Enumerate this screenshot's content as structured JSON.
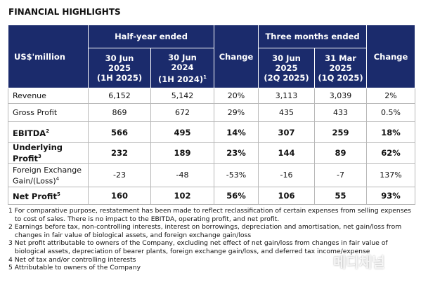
{
  "title": "FINANCIAL HIGHLIGHTS",
  "table": {
    "corner": "US$'million",
    "groups": [
      "Half-year ended",
      "Change",
      "Three months ended",
      "Change"
    ],
    "columns": [
      {
        "day": "30 Jun",
        "year": "2025",
        "period": "(1H 2025)"
      },
      {
        "day": "30 Jun",
        "year": "2024",
        "period": "(1H 2024)",
        "note": "1"
      },
      {
        "day": "30 Jun",
        "year": "2025",
        "period": "(2Q 2025)"
      },
      {
        "day": "31 Mar",
        "year": "2025",
        "period": "(1Q 2025)"
      }
    ],
    "rows": [
      {
        "label": "Revenue",
        "bold": false,
        "cells": [
          "6,152",
          "5,142",
          "20%",
          "3,113",
          "3,039",
          "2%"
        ]
      },
      {
        "label": "Gross Profit",
        "bold": false,
        "cells": [
          "869",
          "672",
          "29%",
          "435",
          "433",
          "0.5%"
        ]
      },
      {
        "label": "EBITDA",
        "note": "2",
        "bold": true,
        "cells": [
          "566",
          "495",
          "14%",
          "307",
          "259",
          "18%"
        ]
      },
      {
        "label": "Underlying Profit",
        "note": "3",
        "bold": true,
        "cells": [
          "232",
          "189",
          "23%",
          "144",
          "89",
          "62%"
        ]
      },
      {
        "label": "Foreign Exchange Gain/(Loss)",
        "note": "4",
        "bold": false,
        "cells": [
          "-23",
          "-48",
          "-53%",
          "-16",
          "-7",
          "137%"
        ]
      },
      {
        "label": "Net Profit",
        "note": "5",
        "bold": true,
        "cells": [
          "160",
          "102",
          "56%",
          "106",
          "55",
          "93%"
        ]
      }
    ]
  },
  "footnotes": [
    {
      "mark": "1",
      "text": "For comparative purpose, restatement has been made to reflect reclassification of certain expenses from selling expenses to cost of sales. There is no impact to the EBITDA, operating profit, and net profit."
    },
    {
      "mark": "2",
      "text": "Earnings before tax, non-controlling interests, interest on borrowings, depreciation and amortisation, net gain/loss from changes in fair value of biological assets, and foreign exchange gain/loss"
    },
    {
      "mark": "3",
      "text": "Net profit attributable to owners of the Company, excluding net effect of net gain/loss from changes in fair value of biological assets, depreciation of bearer plants, foreign exchange gain/loss, and deferred tax income/expense"
    },
    {
      "mark": "4",
      "text": "Net of tax and/or controlling interests"
    },
    {
      "mark": "5",
      "text": "Attributable to owners of the Company"
    }
  ],
  "watermark": "메디채널"
}
